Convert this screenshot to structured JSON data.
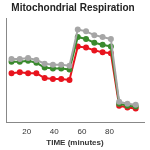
{
  "chart_data": {
    "type": "line",
    "title": "Mitochondrial Respiration",
    "x_label": "TIME (minutes)",
    "x": [
      9,
      15,
      21,
      27,
      33,
      39,
      45,
      51,
      57,
      63,
      69,
      75,
      81,
      87,
      93,
      99
    ],
    "series": [
      {
        "color": "#a6a6a6",
        "marker": "circle",
        "values": [
          67,
          67,
          68,
          66,
          62,
          61,
          61,
          60,
          98,
          96,
          92,
          90,
          88,
          22,
          20,
          19
        ]
      },
      {
        "color": "#3a8a2e",
        "marker": "circle",
        "values": [
          64,
          64,
          65,
          63,
          58,
          57,
          57,
          56,
          90,
          88,
          84,
          82,
          80,
          20,
          18,
          17
        ]
      },
      {
        "color": "#e8141e",
        "marker": "circle",
        "values": [
          52,
          53,
          52,
          52,
          47,
          46,
          46,
          45,
          80,
          79,
          76,
          74,
          73,
          18,
          16,
          15
        ]
      }
    ],
    "xlim": [
      5,
      105
    ],
    "xticks": [
      20,
      40,
      60,
      80
    ],
    "ylim": [
      0,
      110
    ],
    "grid": false,
    "tick_labels": "x"
  }
}
